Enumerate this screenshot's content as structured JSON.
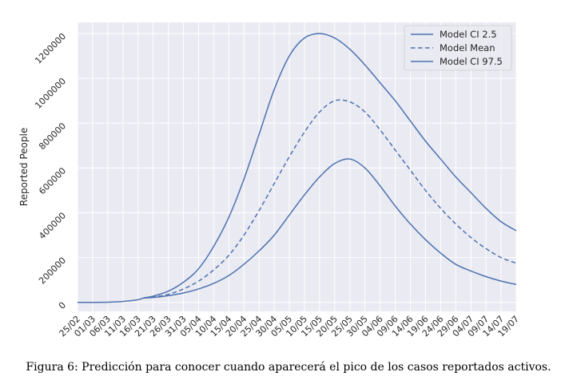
{
  "caption": "Figura 6: Predicción para conocer cuando aparecerá el pico de los casos reportados activos.",
  "chart_data": {
    "type": "line",
    "title": "",
    "xlabel": "",
    "ylabel": "Reported People",
    "ylim": [
      -40000,
      1250000
    ],
    "yticks": [
      0,
      200000,
      400000,
      600000,
      800000,
      1000000,
      1200000
    ],
    "xticks": [
      "25/02",
      "01/03",
      "06/03",
      "11/03",
      "16/03",
      "21/03",
      "26/03",
      "31/03",
      "05/04",
      "10/04",
      "15/04",
      "20/04",
      "25/04",
      "30/04",
      "05/05",
      "10/05",
      "15/05",
      "20/05",
      "25/05",
      "30/05",
      "04/06",
      "09/06",
      "14/06",
      "19/06",
      "24/06",
      "29/06",
      "04/07",
      "09/07",
      "14/07",
      "19/07"
    ],
    "grid": true,
    "legend": {
      "position": "top-right"
    },
    "colors": {
      "line": "#4c72b0",
      "background": "#eaeaf2",
      "grid": "#ffffff"
    },
    "x_unit": "days from 25/02 (tick every 5 days)",
    "series": [
      {
        "name": "Model CI 2.5",
        "style": "solid",
        "x": [
          0,
          5,
          10,
          15,
          20,
          22,
          25,
          30,
          35,
          40,
          45,
          50,
          55,
          60,
          65,
          70,
          75,
          80,
          85,
          90,
          95,
          100,
          105,
          110,
          115,
          120,
          125,
          130,
          135,
          140,
          145
        ],
        "values": [
          0,
          0,
          1000,
          4000,
          12000,
          20000,
          28000,
          50000,
          90000,
          150000,
          250000,
          380000,
          550000,
          750000,
          950000,
          1100000,
          1180000,
          1200000,
          1180000,
          1130000,
          1060000,
          980000,
          900000,
          810000,
          720000,
          640000,
          560000,
          490000,
          420000,
          360000,
          320000
        ]
      },
      {
        "name": "Model Mean",
        "style": "dashed",
        "x": [
          22,
          25,
          30,
          35,
          40,
          45,
          50,
          55,
          60,
          65,
          70,
          75,
          80,
          85,
          90,
          95,
          100,
          105,
          110,
          115,
          120,
          125,
          130,
          135,
          140,
          145
        ],
        "values": [
          20000,
          24000,
          36000,
          60000,
          95000,
          145000,
          210000,
          300000,
          410000,
          530000,
          650000,
          760000,
          850000,
          900000,
          895000,
          850000,
          770000,
          680000,
          590000,
          500000,
          420000,
          350000,
          290000,
          240000,
          200000,
          175000
        ]
      },
      {
        "name": "Model CI 97.5",
        "style": "solid",
        "x": [
          22,
          25,
          30,
          35,
          40,
          45,
          50,
          55,
          60,
          65,
          70,
          75,
          80,
          85,
          90,
          95,
          100,
          105,
          110,
          115,
          120,
          125,
          130,
          135,
          140,
          145
        ],
        "values": [
          20000,
          22000,
          30000,
          42000,
          60000,
          85000,
          120000,
          170000,
          230000,
          300000,
          390000,
          480000,
          560000,
          620000,
          640000,
          600000,
          520000,
          430000,
          350000,
          280000,
          220000,
          170000,
          140000,
          115000,
          95000,
          80000
        ]
      }
    ]
  }
}
